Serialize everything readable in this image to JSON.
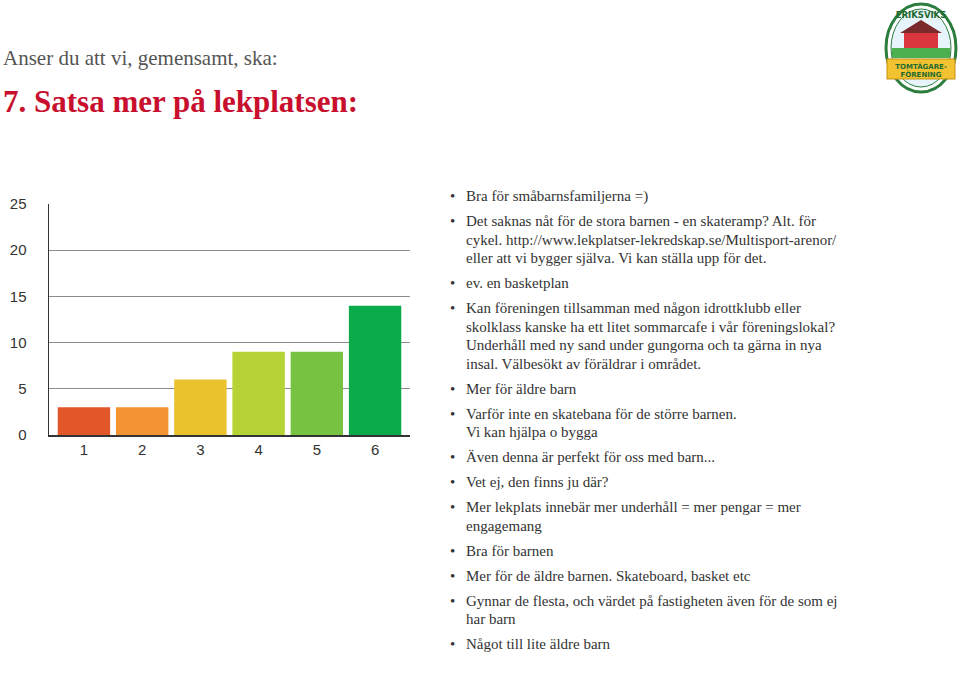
{
  "header": {
    "question": "Anser du att vi, gemensamt, ska:",
    "title": "7. Satsa mer på lekplatsen:"
  },
  "logo": {
    "lines": [
      "ERIKSVIKS",
      "TOMTÄGARE-",
      "FÖRENING"
    ]
  },
  "chart_data": {
    "type": "bar",
    "categories": [
      "1",
      "2",
      "3",
      "4",
      "5",
      "6"
    ],
    "values": [
      3,
      3,
      6,
      9,
      9,
      14
    ],
    "colors": [
      "#e2572a",
      "#f39433",
      "#e9c22e",
      "#b5d334",
      "#78c242",
      "#0bab4c"
    ],
    "ylim": [
      0,
      25
    ],
    "yticks": [
      0,
      5,
      10,
      15,
      20,
      25
    ],
    "grid": true
  },
  "comments": [
    "Bra för småbarnsfamiljerna =)",
    "Det saknas nåt för de stora barnen - en skateramp? Alt. för cykel. http://www.lekplatser-lekredskap.se/Multisport-arenor/ eller att vi bygger själva. Vi kan ställa upp för det.",
    "ev. en basketplan",
    "Kan föreningen tillsamman med någon idrottklubb eller skolklass kanske ha ett litet sommarcafe i vår föreningslokal? Underhåll med ny sand under gungorna och ta gärna in nya insal. Välbesökt av föräldrar i området.",
    "Mer för äldre barn",
    "Varför inte en skatebana för de större barnen.\nVi kan hjälpa o bygga",
    "Även denna är perfekt för oss med barn...",
    "Vet ej, den finns ju där?",
    "Mer lekplats innebär mer underhåll = mer pengar = mer engagemang",
    "Bra för barnen",
    "Mer för de äldre barnen. Skateboard, basket etc",
    "Gynnar de flesta, och värdet på fastigheten även för de som ej har barn",
    "Något till lite äldre barn"
  ]
}
